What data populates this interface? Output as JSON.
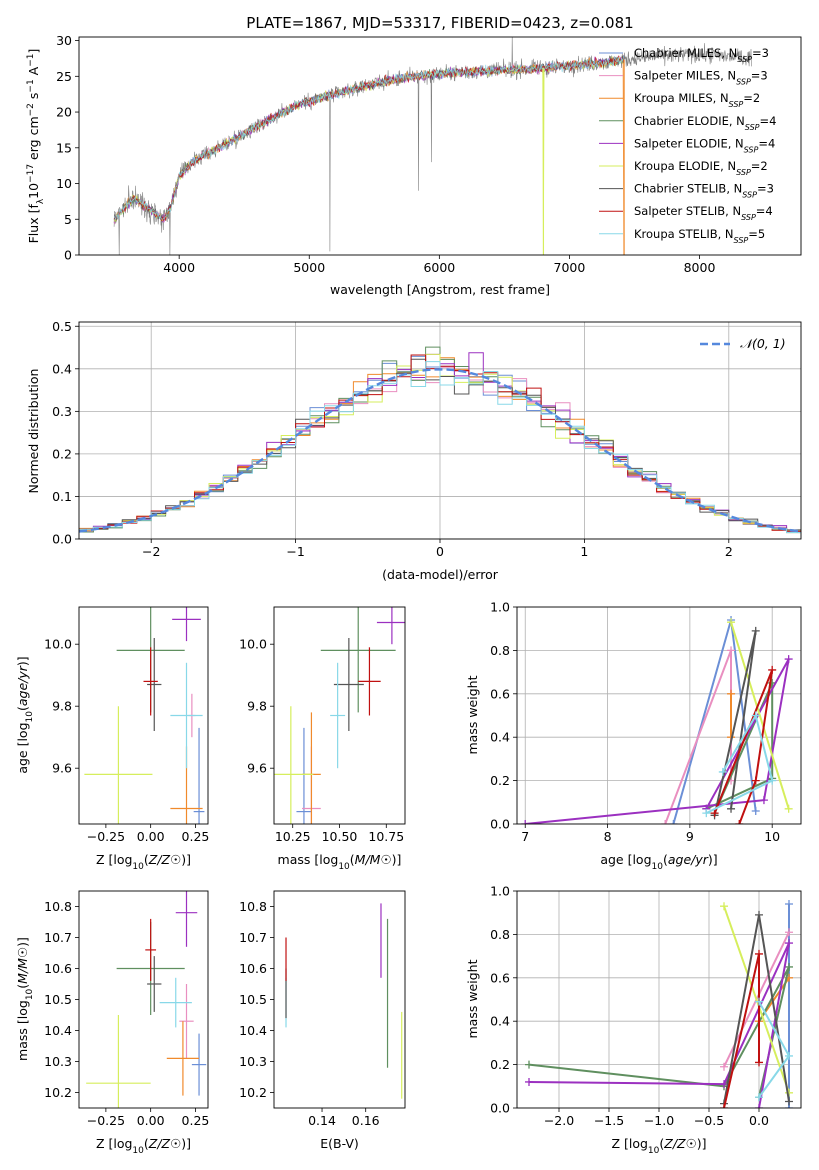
{
  "figure": {
    "title": "PLATE=1867, MJD=53317, FIBERID=0423, z=0.081"
  },
  "palette": {
    "Chabrier MILES": "#6b8fd6",
    "Salpeter MILES": "#e98fc0",
    "Kroupa MILES": "#f08a2c",
    "Chabrier ELODIE": "#5f8f5f",
    "Salpeter ELODIE": "#9b30c0",
    "Kroupa ELODIE": "#d6ee5c",
    "Chabrier STELIB": "#555555",
    "Salpeter STELIB": "#c01010",
    "Kroupa STELIB": "#88d8e8",
    "data": "#808080",
    "gauss": "#5588dd"
  },
  "chart_data": [
    {
      "id": "spectrum",
      "type": "line",
      "title": "PLATE=1867, MJD=53317, FIBERID=0423, z=0.081",
      "xlabel": "wavelength [Angstrom, rest frame]",
      "ylabel_main": "Flux [f",
      "ylabel_lambda": "λ",
      "ylabel_rest": "10",
      "ylabel_exp1": "−17",
      "ylabel_unit": " erg cm",
      "ylabel_exp2": "−2",
      "ylabel_unit2": " s",
      "ylabel_exp3": "−1",
      "ylabel_unit3": " A",
      "ylabel_exp4": "−1",
      "ylabel_end": "]",
      "xlim": [
        3230,
        8780
      ],
      "ylim": [
        0,
        30.5
      ],
      "xticks": [
        4000,
        5000,
        6000,
        7000,
        8000
      ],
      "yticks": [
        0,
        5,
        10,
        15,
        20,
        25,
        30
      ],
      "continuum": [
        [
          3500,
          5.0
        ],
        [
          3650,
          8.0
        ],
        [
          3800,
          6.0
        ],
        [
          3880,
          5.0
        ],
        [
          3940,
          7.0
        ],
        [
          4000,
          11.0
        ],
        [
          4100,
          13.0
        ],
        [
          4300,
          15.0
        ],
        [
          4500,
          17.0
        ],
        [
          4700,
          19.0
        ],
        [
          4900,
          21.0
        ],
        [
          5100,
          22.0
        ],
        [
          5300,
          23.0
        ],
        [
          5500,
          24.0
        ],
        [
          5800,
          25.0
        ],
        [
          6100,
          25.5
        ],
        [
          6400,
          25.8
        ],
        [
          6700,
          26.0
        ],
        [
          7000,
          26.5
        ],
        [
          7300,
          27.0
        ],
        [
          7500,
          27.5
        ],
        [
          7800,
          28.0
        ],
        [
          8100,
          28.0
        ],
        [
          8400,
          27.5
        ]
      ],
      "model_range": [
        3500,
        7420
      ],
      "dips": [
        {
          "x": 5160,
          "y": 0.5
        },
        {
          "x": 5840,
          "y": 9.0
        },
        {
          "x": 5940,
          "y": 13.0
        },
        {
          "x": 3540,
          "y": 0
        },
        {
          "x": 3930,
          "y": 0
        }
      ],
      "spikes": [
        {
          "x": 6560,
          "y": 30.5
        }
      ],
      "model_drops": [
        {
          "x": 6800,
          "y": 0,
          "series": "Kroupa ELODIE"
        },
        {
          "x": 7420,
          "y": 0,
          "series": "Kroupa MILES"
        }
      ],
      "legend": [
        {
          "name": "Chabrier MILES",
          "n": "3"
        },
        {
          "name": "Salpeter MILES",
          "n": "3"
        },
        {
          "name": "Kroupa MILES",
          "n": "2"
        },
        {
          "name": "Chabrier ELODIE",
          "n": "4"
        },
        {
          "name": "Salpeter ELODIE",
          "n": "4"
        },
        {
          "name": "Kroupa ELODIE",
          "n": "2"
        },
        {
          "name": "Chabrier STELIB",
          "n": "3"
        },
        {
          "name": "Salpeter STELIB",
          "n": "4"
        },
        {
          "name": "Kroupa STELIB",
          "n": "5"
        }
      ],
      "legend_nlabel": "N",
      "legend_nsub": "SSP",
      "legend_placement": "top-right"
    },
    {
      "id": "residuals",
      "type": "histogram",
      "xlabel": "(data-model)/error",
      "ylabel": "Normed distribution",
      "xlim": [
        -2.5,
        2.5
      ],
      "ylim": [
        0,
        0.51
      ],
      "xticks": [
        -2,
        -1,
        0,
        1,
        2
      ],
      "yticks": [
        0.0,
        0.1,
        0.2,
        0.3,
        0.4,
        0.5
      ],
      "grid": true,
      "bin_width": 0.1,
      "gauss_label": "𝒩(0, 1)",
      "legend_placement": "top-right"
    },
    {
      "id": "z-age",
      "type": "errorbar",
      "xlabel": "Z [log10(Z/Z☉)]",
      "ylabel": "age  [log10(age/yr)]",
      "xlim": [
        -0.4,
        0.32
      ],
      "ylim": [
        9.42,
        10.12
      ],
      "xticks": [
        -0.25,
        0.0,
        0.25
      ],
      "yticks": [
        9.6,
        9.8,
        10.0
      ],
      "points": [
        {
          "series": "Chabrier MILES",
          "x": 0.27,
          "xerr": 0.03,
          "y": 9.46,
          "yerr": 0.27
        },
        {
          "series": "Salpeter MILES",
          "x": 0.23,
          "xerr": 0.02,
          "y": 9.77,
          "yerr": 0.07
        },
        {
          "series": "Kroupa MILES",
          "x": 0.2,
          "xerr": 0.09,
          "y": 9.47,
          "yerr": 0.2
        },
        {
          "series": "Chabrier ELODIE",
          "x": 0.0,
          "xerr": 0.19,
          "y": 9.98,
          "yerr": 0.2
        },
        {
          "series": "Salpeter ELODIE",
          "x": 0.2,
          "xerr": 0.08,
          "y": 10.08,
          "yerr": 0.07
        },
        {
          "series": "Kroupa ELODIE",
          "x": -0.18,
          "xerr": 0.19,
          "y": 9.58,
          "yerr": 0.22
        },
        {
          "series": "Chabrier STELIB",
          "x": 0.02,
          "xerr": 0.04,
          "y": 9.87,
          "yerr": 0.15
        },
        {
          "series": "Salpeter STELIB",
          "x": 0.0,
          "xerr": 0.04,
          "y": 9.88,
          "yerr": 0.11
        },
        {
          "series": "Kroupa STELIB",
          "x": 0.2,
          "xerr": 0.09,
          "y": 9.77,
          "yerr": 0.17
        }
      ]
    },
    {
      "id": "mass-age",
      "type": "errorbar",
      "xlabel": "mass [log10(M/M☉)]",
      "ylabel": "",
      "xlim": [
        10.15,
        10.85
      ],
      "ylim": [
        9.42,
        10.12
      ],
      "xticks": [
        10.25,
        10.5,
        10.75
      ],
      "yticks": [
        9.6,
        9.8,
        10.0
      ],
      "points": [
        {
          "series": "Chabrier MILES",
          "x": 10.31,
          "xerr": 0.04,
          "y": 9.46,
          "yerr": 0.27
        },
        {
          "series": "Salpeter MILES",
          "x": 10.35,
          "xerr": 0.05,
          "y": 9.47,
          "yerr": 0.2
        },
        {
          "series": "Kroupa MILES",
          "x": 10.35,
          "xerr": 0.05,
          "y": 9.58,
          "yerr": 0.2
        },
        {
          "series": "Chabrier ELODIE",
          "x": 10.6,
          "xerr": 0.2,
          "y": 9.98,
          "yerr": 0.2
        },
        {
          "series": "Salpeter ELODIE",
          "x": 10.78,
          "xerr": 0.08,
          "y": 10.07,
          "yerr": 0.07
        },
        {
          "series": "Kroupa ELODIE",
          "x": 10.24,
          "xerr": 0.12,
          "y": 9.58,
          "yerr": 0.22
        },
        {
          "series": "Chabrier STELIB",
          "x": 10.55,
          "xerr": 0.08,
          "y": 9.87,
          "yerr": 0.15
        },
        {
          "series": "Salpeter STELIB",
          "x": 10.66,
          "xerr": 0.06,
          "y": 9.88,
          "yerr": 0.11
        },
        {
          "series": "Kroupa STELIB",
          "x": 10.49,
          "xerr": 0.04,
          "y": 9.77,
          "yerr": 0.17
        }
      ]
    },
    {
      "id": "age-weight",
      "type": "line",
      "xlabel": "age  [log10(age/yr)]",
      "ylabel": "mass weight",
      "xlim": [
        6.9,
        10.35
      ],
      "ylim": [
        0,
        1.0
      ],
      "xticks": [
        7,
        8,
        9,
        10
      ],
      "yticks": [
        0.0,
        0.2,
        0.4,
        0.6,
        0.8,
        1.0
      ],
      "grid": true,
      "series": [
        {
          "name": "Chabrier MILES",
          "points": [
            [
              8.8,
              0.0
            ],
            [
              9.5,
              0.94
            ],
            [
              9.8,
              0.06
            ]
          ]
        },
        {
          "name": "Salpeter MILES",
          "points": [
            [
              8.7,
              0.0
            ],
            [
              9.5,
              0.8
            ],
            [
              9.5,
              0.2
            ]
          ]
        },
        {
          "name": "Kroupa MILES",
          "points": [
            [
              9.5,
              0.6
            ],
            [
              9.5,
              0.4
            ]
          ]
        },
        {
          "name": "Chabrier ELODIE",
          "points": [
            [
              9.2,
              0.07
            ],
            [
              10.0,
              0.21
            ],
            [
              10.0,
              0.65
            ],
            [
              9.3,
              0.05
            ]
          ]
        },
        {
          "name": "Salpeter ELODIE",
          "points": [
            [
              7.0,
              0.0
            ],
            [
              9.9,
              0.11
            ],
            [
              10.2,
              0.76
            ],
            [
              9.2,
              0.07
            ]
          ]
        },
        {
          "name": "Kroupa ELODIE",
          "points": [
            [
              9.5,
              0.93
            ],
            [
              10.2,
              0.07
            ]
          ]
        },
        {
          "name": "Chabrier STELIB",
          "points": [
            [
              9.3,
              0.04
            ],
            [
              9.8,
              0.89
            ],
            [
              9.5,
              0.07
            ]
          ]
        },
        {
          "name": "Salpeter STELIB",
          "points": [
            [
              9.6,
              0.0
            ],
            [
              9.8,
              0.2
            ],
            [
              10.0,
              0.71
            ],
            [
              9.3,
              0.05
            ]
          ]
        },
        {
          "name": "Kroupa STELIB",
          "points": [
            [
              9.2,
              0.05
            ],
            [
              10.0,
              0.2
            ],
            [
              9.8,
              0.5
            ],
            [
              9.4,
              0.24
            ]
          ]
        }
      ]
    },
    {
      "id": "z-mass",
      "type": "errorbar",
      "xlabel": "Z [log10(Z/Z☉)]",
      "ylabel": "mass [log10(M/M☉)]",
      "xlim": [
        -0.4,
        0.32
      ],
      "ylim": [
        10.15,
        10.85
      ],
      "xticks": [
        -0.25,
        0.0,
        0.25
      ],
      "yticks": [
        10.2,
        10.3,
        10.4,
        10.5,
        10.6,
        10.7,
        10.8
      ],
      "points": [
        {
          "series": "Chabrier MILES",
          "x": 0.27,
          "xerr": 0.04,
          "y": 10.29,
          "yerr": 0.1
        },
        {
          "series": "Salpeter MILES",
          "x": 0.2,
          "xerr": 0.04,
          "y": 10.43,
          "yerr": 0.12
        },
        {
          "series": "Kroupa MILES",
          "x": 0.18,
          "xerr": 0.09,
          "y": 10.31,
          "yerr": 0.12
        },
        {
          "series": "Chabrier ELODIE",
          "x": 0.0,
          "xerr": 0.19,
          "y": 10.6,
          "yerr": 0.15
        },
        {
          "series": "Salpeter ELODIE",
          "x": 0.2,
          "xerr": 0.06,
          "y": 10.78,
          "yerr": 0.11
        },
        {
          "series": "Kroupa ELODIE",
          "x": -0.18,
          "xerr": 0.18,
          "y": 10.23,
          "yerr": 0.22
        },
        {
          "series": "Chabrier STELIB",
          "x": 0.02,
          "xerr": 0.04,
          "y": 10.55,
          "yerr": 0.09
        },
        {
          "series": "Salpeter STELIB",
          "x": 0.0,
          "xerr": 0.03,
          "y": 10.66,
          "yerr": 0.1
        },
        {
          "series": "Kroupa STELIB",
          "x": 0.14,
          "xerr": 0.09,
          "y": 10.49,
          "yerr": 0.08
        }
      ]
    },
    {
      "id": "ebv-mass",
      "type": "errorbar",
      "xlabel": "E(B-V)",
      "ylabel": "",
      "xlim": [
        0.118,
        0.178
      ],
      "ylim": [
        10.15,
        10.85
      ],
      "xticks": [
        0.14,
        0.16
      ],
      "yticks": [
        10.2,
        10.3,
        10.4,
        10.5,
        10.6,
        10.7,
        10.8
      ],
      "points": [
        {
          "series": "Kroupa STELIB",
          "x": 0.1235,
          "xerr": 0,
          "y": 10.49,
          "yerr": 0.08
        },
        {
          "series": "Chabrier STELIB",
          "x": 0.1235,
          "xerr": 0,
          "y": 10.52,
          "yerr": 0.08
        },
        {
          "series": "Salpeter STELIB",
          "x": 0.1235,
          "xerr": 0,
          "y": 10.63,
          "yerr": 0.07
        },
        {
          "series": "Salpeter ELODIE",
          "x": 0.167,
          "xerr": 0,
          "y": 10.69,
          "yerr": 0.12
        },
        {
          "series": "Chabrier ELODIE",
          "x": 0.17,
          "xerr": 0,
          "y": 10.52,
          "yerr": 0.24
        },
        {
          "series": "Kroupa ELODIE",
          "x": 0.1765,
          "xerr": 0,
          "y": 10.32,
          "yerr": 0.14
        }
      ]
    },
    {
      "id": "z-weight",
      "type": "line",
      "xlabel": "Z [log10(Z/Z☉)]",
      "ylabel": "mass weight",
      "xlim": [
        -2.42,
        0.42
      ],
      "ylim": [
        0,
        1.0
      ],
      "xticks": [
        -2.0,
        -1.5,
        -1.0,
        -0.5,
        0.0
      ],
      "yticks": [
        0.0,
        0.2,
        0.4,
        0.6,
        0.8,
        1.0
      ],
      "grid": true,
      "series": [
        {
          "name": "Chabrier MILES",
          "points": [
            [
              0.3,
              0.94
            ],
            [
              0.3,
              0.0
            ]
          ]
        },
        {
          "name": "Salpeter MILES",
          "points": [
            [
              -0.35,
              0.19
            ],
            [
              0.3,
              0.81
            ]
          ]
        },
        {
          "name": "Kroupa MILES",
          "points": [
            [
              0.0,
              0.4
            ],
            [
              0.3,
              0.6
            ]
          ]
        },
        {
          "name": "Chabrier ELODIE",
          "points": [
            [
              -2.3,
              0.2
            ],
            [
              -0.35,
              0.1
            ],
            [
              0.3,
              0.65
            ],
            [
              0.0,
              0.05
            ]
          ]
        },
        {
          "name": "Salpeter ELODIE",
          "points": [
            [
              -2.3,
              0.12
            ],
            [
              -0.35,
              0.11
            ],
            [
              0.3,
              0.76
            ],
            [
              0.0,
              0.0
            ]
          ]
        },
        {
          "name": "Kroupa ELODIE",
          "points": [
            [
              -0.35,
              0.93
            ],
            [
              0.3,
              0.07
            ]
          ]
        },
        {
          "name": "Chabrier STELIB",
          "points": [
            [
              -0.35,
              0.02
            ],
            [
              0.0,
              0.89
            ],
            [
              0.3,
              0.03
            ]
          ]
        },
        {
          "name": "Salpeter STELIB",
          "points": [
            [
              -0.35,
              0.0
            ],
            [
              0.0,
              0.71
            ],
            [
              0.0,
              0.21
            ]
          ]
        },
        {
          "name": "Kroupa STELIB",
          "points": [
            [
              0.0,
              0.49
            ],
            [
              0.3,
              0.24
            ],
            [
              0.0,
              0.05
            ]
          ]
        }
      ]
    }
  ]
}
